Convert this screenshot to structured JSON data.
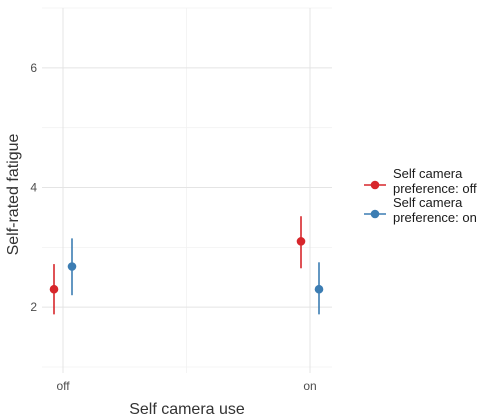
{
  "chart_data": {
    "type": "scatter",
    "xlabel": "Self camera use",
    "ylabel": "Self-rated fatigue",
    "categories": [
      "off",
      "on"
    ],
    "ylim": [
      0.9,
      7.0
    ],
    "yticks": [
      2,
      4,
      6
    ],
    "grid": true,
    "legend_position": "right",
    "series": [
      {
        "name_lines": [
          "Self camera",
          " preference: off"
        ],
        "color": "#d7262b",
        "points": [
          {
            "x": "off",
            "y": 2.3,
            "ymin": 1.88,
            "ymax": 2.72
          },
          {
            "x": "on",
            "y": 3.1,
            "ymin": 2.65,
            "ymax": 3.52
          }
        ]
      },
      {
        "name_lines": [
          "Self camera",
          " preference: on"
        ],
        "color": "#3c7db3",
        "points": [
          {
            "x": "off",
            "y": 2.68,
            "ymin": 2.2,
            "ymax": 3.15
          },
          {
            "x": "on",
            "y": 2.3,
            "ymin": 1.88,
            "ymax": 2.75
          }
        ]
      }
    ]
  }
}
